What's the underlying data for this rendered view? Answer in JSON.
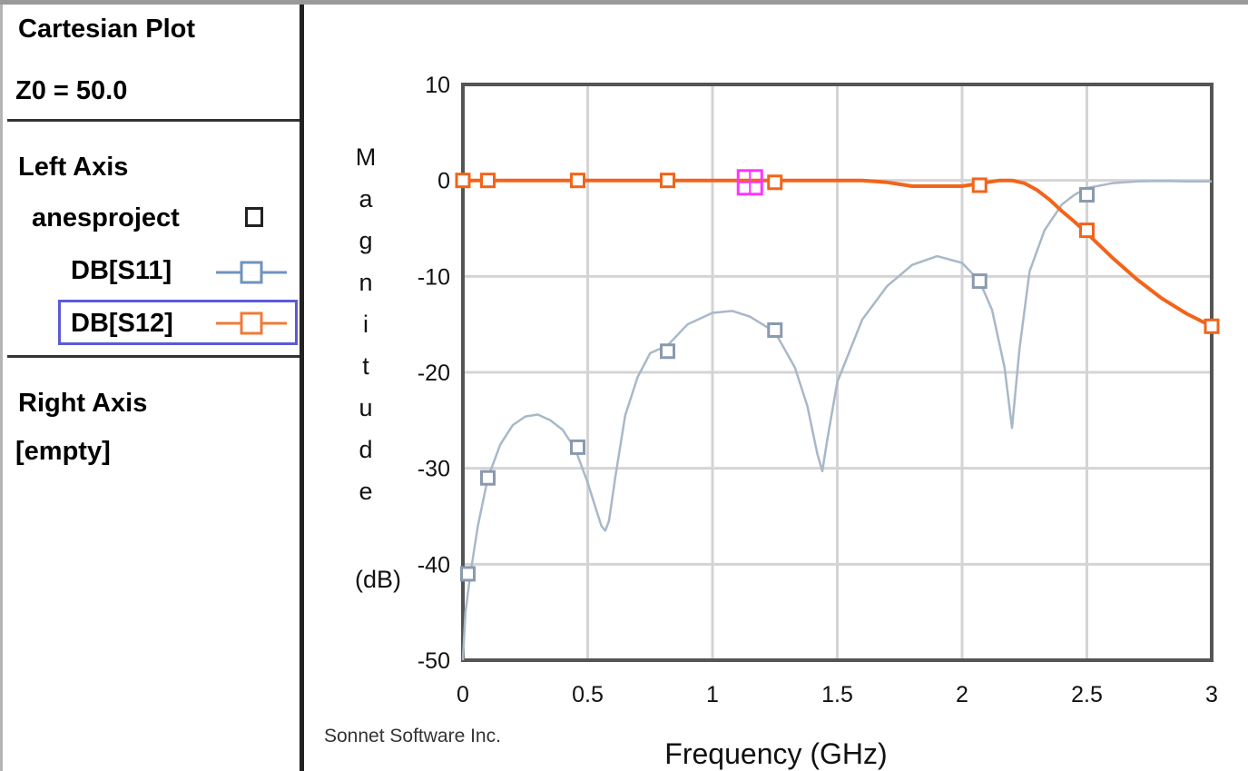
{
  "panel": {
    "title": "Cartesian Plot",
    "z0": "Z0 = 50.0",
    "left_axis_label": "Left Axis",
    "project_name": "anesproject",
    "traces": [
      {
        "label": "DB[S11]",
        "color": "#6f93bd",
        "selected": false
      },
      {
        "label": "DB[S12]",
        "color": "#f07a3a",
        "selected": true
      }
    ],
    "right_axis_label": "Right Axis",
    "right_axis_value": "[empty]"
  },
  "colors": {
    "s11": "#a9b8c8",
    "s11_marker": "#8a9aae",
    "s12": "#f26419",
    "marker_cursor": "#ff33ff",
    "grid": "#d4d4d4",
    "plot_border": "#555555"
  },
  "chart_data": {
    "type": "line",
    "ylabel_letters": [
      "M",
      "a",
      "g",
      "n",
      "i",
      "t",
      "u",
      "d",
      "e"
    ],
    "yunit": "(dB)",
    "xlabel": "Frequency (GHz)",
    "footer": "Sonnet Software Inc.",
    "xlim": [
      0,
      3
    ],
    "ylim": [
      -50,
      10
    ],
    "xticks": [
      0,
      0.5,
      1,
      1.5,
      2,
      2.5,
      3
    ],
    "xtick_labels": [
      "0",
      "0.5",
      "1",
      "1.5",
      "2",
      "2.5",
      "3"
    ],
    "yticks": [
      10,
      0,
      -10,
      -20,
      -30,
      -40,
      -50
    ],
    "ytick_labels": [
      "10",
      "0",
      "-10",
      "-20",
      "-30",
      "-40",
      "-50"
    ],
    "grid": true,
    "series": [
      {
        "name": "DB[S11]",
        "x": [
          0,
          0.01,
          0.03,
          0.06,
          0.1,
          0.15,
          0.2,
          0.25,
          0.3,
          0.35,
          0.4,
          0.45,
          0.5,
          0.53,
          0.555,
          0.57,
          0.585,
          0.61,
          0.65,
          0.7,
          0.75,
          0.82,
          0.9,
          1.0,
          1.08,
          1.15,
          1.25,
          1.33,
          1.38,
          1.42,
          1.44,
          1.46,
          1.5,
          1.6,
          1.7,
          1.8,
          1.9,
          2.0,
          2.07,
          2.12,
          2.17,
          2.2,
          2.23,
          2.27,
          2.33,
          2.4,
          2.45,
          2.5,
          2.6,
          2.7,
          2.8,
          2.9,
          3.0
        ],
        "values": [
          -50,
          -45,
          -41,
          -36,
          -31,
          -27.5,
          -25.5,
          -24.6,
          -24.4,
          -25,
          -26,
          -28,
          -31.5,
          -34,
          -36,
          -36.5,
          -35.5,
          -31,
          -24.5,
          -20.5,
          -18,
          -17.2,
          -15,
          -13.8,
          -13.6,
          -14.2,
          -15.8,
          -19.5,
          -23.5,
          -28.5,
          -30.3,
          -27,
          -21,
          -14.5,
          -11,
          -8.8,
          -7.9,
          -8.6,
          -10.5,
          -13.5,
          -19.5,
          -25.8,
          -17.5,
          -9.5,
          -5.2,
          -2.5,
          -1.5,
          -0.8,
          -0.3,
          -0.1,
          -0.05,
          -0.1,
          -0.1
        ],
        "markers_x": [
          0.02,
          0.1,
          0.46,
          0.82,
          1.25,
          2.07,
          2.5
        ],
        "markers_y": [
          -41,
          -31,
          -27.8,
          -17.8,
          -15.6,
          -10.5,
          -1.5
        ]
      },
      {
        "name": "DB[S12]",
        "x": [
          0,
          0.1,
          0.2,
          0.3,
          0.4,
          0.5,
          0.6,
          0.7,
          0.8,
          0.9,
          1.0,
          1.1,
          1.2,
          1.3,
          1.4,
          1.5,
          1.6,
          1.7,
          1.75,
          1.8,
          1.9,
          2.0,
          2.05,
          2.1,
          2.15,
          2.2,
          2.25,
          2.3,
          2.35,
          2.4,
          2.45,
          2.5,
          2.6,
          2.7,
          2.8,
          2.9,
          3.0
        ],
        "values": [
          0,
          0,
          0,
          0,
          0,
          0,
          0,
          0,
          0,
          0,
          0,
          0,
          0,
          0,
          0,
          0,
          0,
          -0.2,
          -0.4,
          -0.6,
          -0.6,
          -0.6,
          -0.4,
          -0.2,
          0,
          0,
          -0.3,
          -1.0,
          -2.0,
          -3.2,
          -4.3,
          -5.5,
          -8.0,
          -10.3,
          -12.3,
          -13.9,
          -15.2
        ],
        "markers_x": [
          0,
          0.1,
          0.46,
          0.82,
          1.25,
          2.07,
          2.5,
          3.0
        ],
        "markers_y": [
          0,
          0,
          0,
          0,
          -0.2,
          -0.5,
          -5.2,
          -15.2
        ]
      }
    ],
    "cursor_marker": {
      "x": 1.15,
      "y": -0.2
    }
  }
}
